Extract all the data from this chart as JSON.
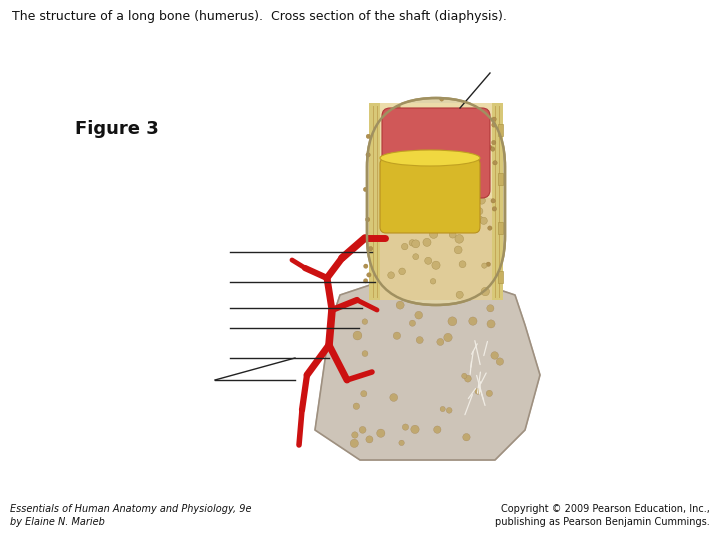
{
  "title": "The structure of a long bone (humerus).  Cross section of the shaft (diaphysis).",
  "figure_label": "Figure 3",
  "footer_left": "Essentials of Human Anatomy and Physiology, 9e\nby Elaine N. Marieb",
  "footer_right": "Copyright © 2009 Pearson Education, Inc.,\npublishing as Pearson Benjamin Cummings.",
  "bg_color": "#ffffff",
  "title_fontsize": 9,
  "figure_label_fontsize": 13,
  "footer_fontsize": 7,
  "bone_outer_color": "#d4cbbf",
  "bone_outer_border": "#a89880",
  "compact_bone_color": "#e8d898",
  "spongy_bone_color": "#e8d8a8",
  "marrow_yellow_color": "#e0c840",
  "red_marrow_color": "#d06060",
  "blood_vessel_color": "#cc1111",
  "line_color": "#222222",
  "epiphysis_color": "#cdc4b8",
  "metaphysis_color": "#ccc0b0"
}
